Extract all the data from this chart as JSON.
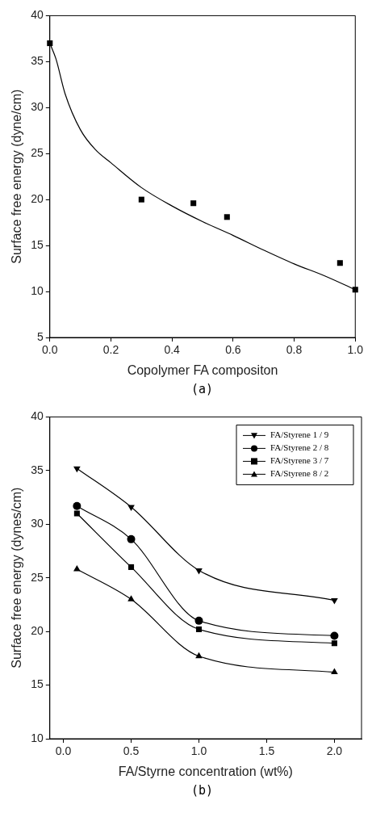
{
  "chart_data": [
    {
      "type": "scatter",
      "xlabel": "Copolymer FA compositon",
      "ylabel": "Surface free energy (dyne/cm)",
      "annotations": [
        "(a)"
      ],
      "xlim": [
        0,
        1
      ],
      "ylim": [
        5,
        40
      ],
      "xticks": [
        {
          "value": 0,
          "label": "0.0"
        },
        {
          "value": 0.2,
          "label": "0.2"
        },
        {
          "value": 0.4,
          "label": "0.4"
        },
        {
          "value": 0.6,
          "label": "0.6"
        },
        {
          "value": 0.8,
          "label": "0.8"
        },
        {
          "value": 1,
          "label": "1.0"
        }
      ],
      "yticks": [
        5,
        10,
        15,
        20,
        25,
        30,
        35,
        40
      ],
      "grid": false,
      "legend": false,
      "series": [
        {
          "type": "scatter",
          "marker": "square",
          "color": "#000000",
          "x": [
            0,
            0.3,
            0.47,
            0.58,
            0.95,
            1.0
          ],
          "values": [
            37,
            20,
            19.6,
            18.1,
            13.1,
            10.2
          ]
        },
        {
          "type": "line",
          "marker": "none",
          "color": "#000000",
          "x": [
            0,
            0.02,
            0.05,
            0.1,
            0.15,
            0.2,
            0.3,
            0.4,
            0.5,
            0.6,
            0.7,
            0.8,
            0.9,
            1.0
          ],
          "values": [
            37,
            35.3,
            31.5,
            27.6,
            25.4,
            24.0,
            21.3,
            19.3,
            17.6,
            16.1,
            14.5,
            13.0,
            11.7,
            10.2
          ]
        }
      ]
    },
    {
      "type": "line",
      "xlabel": "FA/Styrne concentration (wt%)",
      "ylabel": "Surface free energy (dynes/cm)",
      "annotations": [
        "(b)"
      ],
      "xlim": [
        -0.1,
        2.2
      ],
      "ylim": [
        10,
        40
      ],
      "xticks": [
        {
          "value": 0,
          "label": "0.0"
        },
        {
          "value": 0.5,
          "label": "0.5"
        },
        {
          "value": 1,
          "label": "1.0"
        },
        {
          "value": 1.5,
          "label": "1.5"
        },
        {
          "value": 2,
          "label": "2.0"
        }
      ],
      "yticks": [
        10,
        15,
        20,
        25,
        30,
        35,
        40
      ],
      "grid": false,
      "legend": "top right",
      "x": [
        0.1,
        0.5,
        1.0,
        2.0
      ],
      "series": [
        {
          "name": "FA/Styrene 1 / 9",
          "marker": "triangle_down",
          "color": "#000000",
          "values": [
            35.2,
            31.6,
            25.7,
            22.9
          ]
        },
        {
          "name": "FA/Styrene 2 / 8",
          "marker": "circle",
          "color": "#000000",
          "values": [
            31.7,
            28.6,
            21.0,
            19.6
          ]
        },
        {
          "name": "FA/Styrene 3 / 7",
          "marker": "square",
          "color": "#000000",
          "values": [
            31.0,
            26.0,
            20.2,
            18.9
          ]
        },
        {
          "name": "FA/Styrene 8 / 2",
          "marker": "triangle",
          "color": "#000000",
          "values": [
            25.8,
            23.0,
            17.7,
            16.2
          ]
        }
      ]
    }
  ]
}
